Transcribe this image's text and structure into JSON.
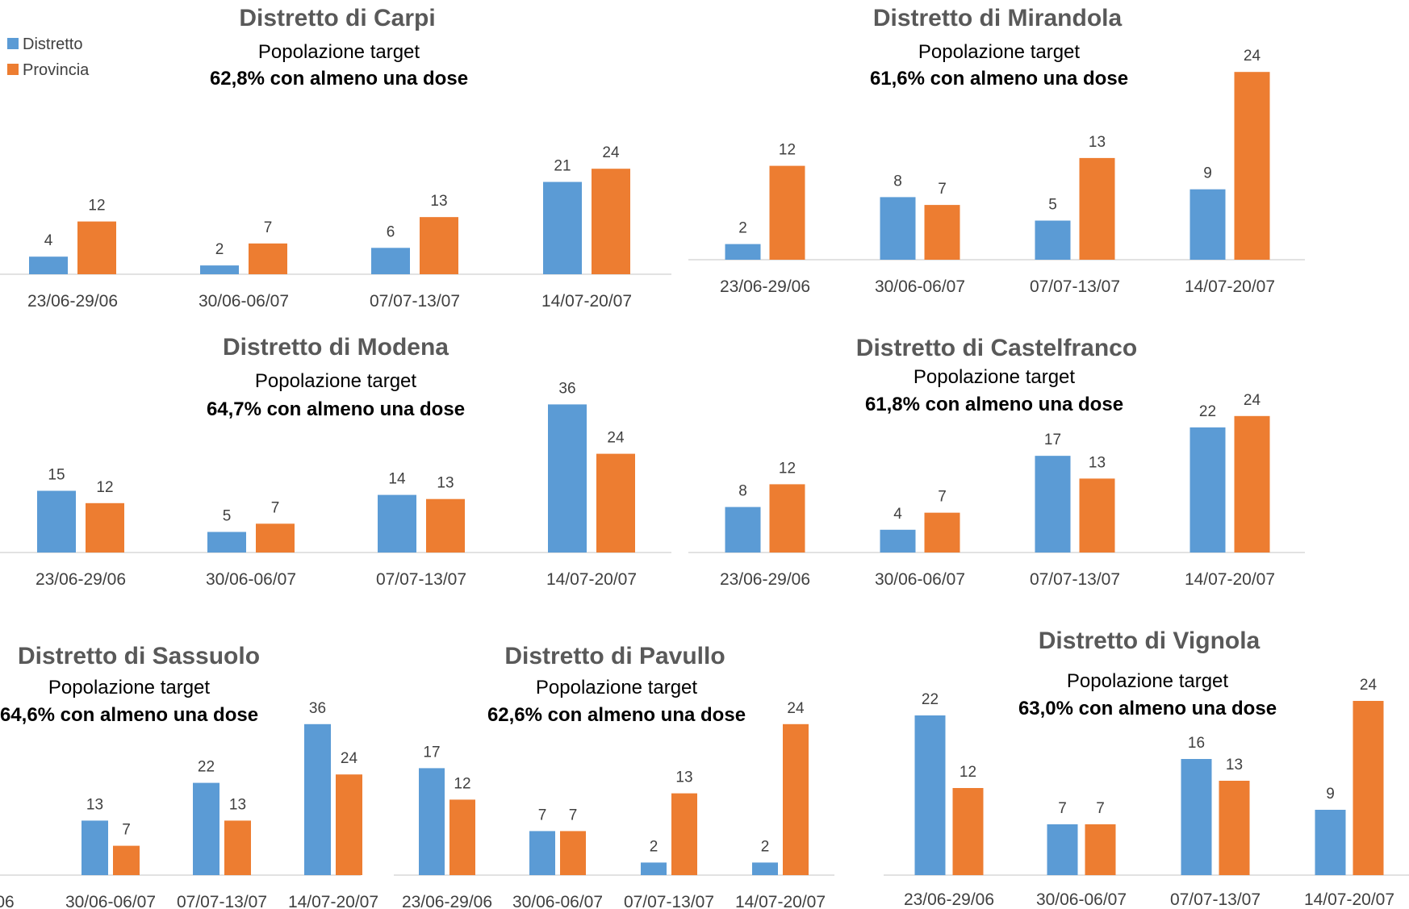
{
  "colors": {
    "distretto": "#5b9bd5",
    "provincia": "#ed7d31",
    "axis": "#d9d9d9"
  },
  "legend": [
    "Distretto",
    "Provincia"
  ],
  "chart_data": [
    {
      "type": "bar",
      "title": "Distretto di Carpi",
      "subtitle": "Popolazione target",
      "subtitle_bold": "62,8% con almeno una dose",
      "categories": [
        "23/06-29/06",
        "30/06-06/07",
        "07/07-13/07",
        "14/07-20/07"
      ],
      "series": [
        {
          "name": "Distretto",
          "values": [
            4,
            2,
            6,
            21
          ]
        },
        {
          "name": "Provincia",
          "values": [
            12,
            7,
            13,
            24
          ]
        }
      ]
    },
    {
      "type": "bar",
      "title": "Distretto di Mirandola",
      "subtitle": "Popolazione target",
      "subtitle_bold": "61,6% con almeno una dose",
      "categories": [
        "23/06-29/06",
        "30/06-06/07",
        "07/07-13/07",
        "14/07-20/07"
      ],
      "series": [
        {
          "name": "Distretto",
          "values": [
            2,
            8,
            5,
            9
          ]
        },
        {
          "name": "Provincia",
          "values": [
            12,
            7,
            13,
            24
          ]
        }
      ]
    },
    {
      "type": "bar",
      "title": "Distretto di Modena",
      "subtitle": "Popolazione target",
      "subtitle_bold": "64,7% con almeno una dose",
      "categories": [
        "23/06-29/06",
        "30/06-06/07",
        "07/07-13/07",
        "14/07-20/07"
      ],
      "series": [
        {
          "name": "Distretto",
          "values": [
            15,
            5,
            14,
            36
          ]
        },
        {
          "name": "Provincia",
          "values": [
            12,
            7,
            13,
            24
          ]
        }
      ]
    },
    {
      "type": "bar",
      "title": "Distretto di Castelfranco",
      "subtitle": "Popolazione target",
      "subtitle_bold": "61,8% con almeno una dose",
      "categories": [
        "23/06-29/06",
        "30/06-06/07",
        "07/07-13/07",
        "14/07-20/07"
      ],
      "series": [
        {
          "name": "Distretto",
          "values": [
            8,
            4,
            17,
            22
          ]
        },
        {
          "name": "Provincia",
          "values": [
            12,
            7,
            13,
            24
          ]
        }
      ]
    },
    {
      "type": "bar",
      "title": "Distretto di Sassuolo",
      "subtitle": "Popolazione target",
      "subtitle_bold": "64,6% con almeno una dose",
      "categories": [
        "06",
        "30/06-06/07",
        "07/07-13/07",
        "14/07-20/07"
      ],
      "series": [
        {
          "name": "Distretto",
          "values": [
            null,
            13,
            22,
            36
          ]
        },
        {
          "name": "Provincia",
          "values": [
            null,
            7,
            13,
            24
          ]
        }
      ]
    },
    {
      "type": "bar",
      "title": "Distretto di Pavullo",
      "subtitle": "Popolazione target",
      "subtitle_bold": "62,6% con almeno una dose",
      "categories": [
        "23/06-29/06",
        "30/06-06/07",
        "07/07-13/07",
        "14/07-20/07"
      ],
      "series": [
        {
          "name": "Distretto",
          "values": [
            17,
            7,
            2,
            2
          ]
        },
        {
          "name": "Provincia",
          "values": [
            12,
            7,
            13,
            24
          ]
        }
      ]
    },
    {
      "type": "bar",
      "title": "Distretto di Vignola",
      "subtitle": "Popolazione target",
      "subtitle_bold": "63,0% con almeno una dose",
      "categories": [
        "23/06-29/06",
        "30/06-06/07",
        "07/07-13/07",
        "14/07-20/07"
      ],
      "series": [
        {
          "name": "Distretto",
          "values": [
            22,
            7,
            16,
            9
          ]
        },
        {
          "name": "Provincia",
          "values": [
            12,
            7,
            13,
            24
          ]
        }
      ]
    }
  ]
}
